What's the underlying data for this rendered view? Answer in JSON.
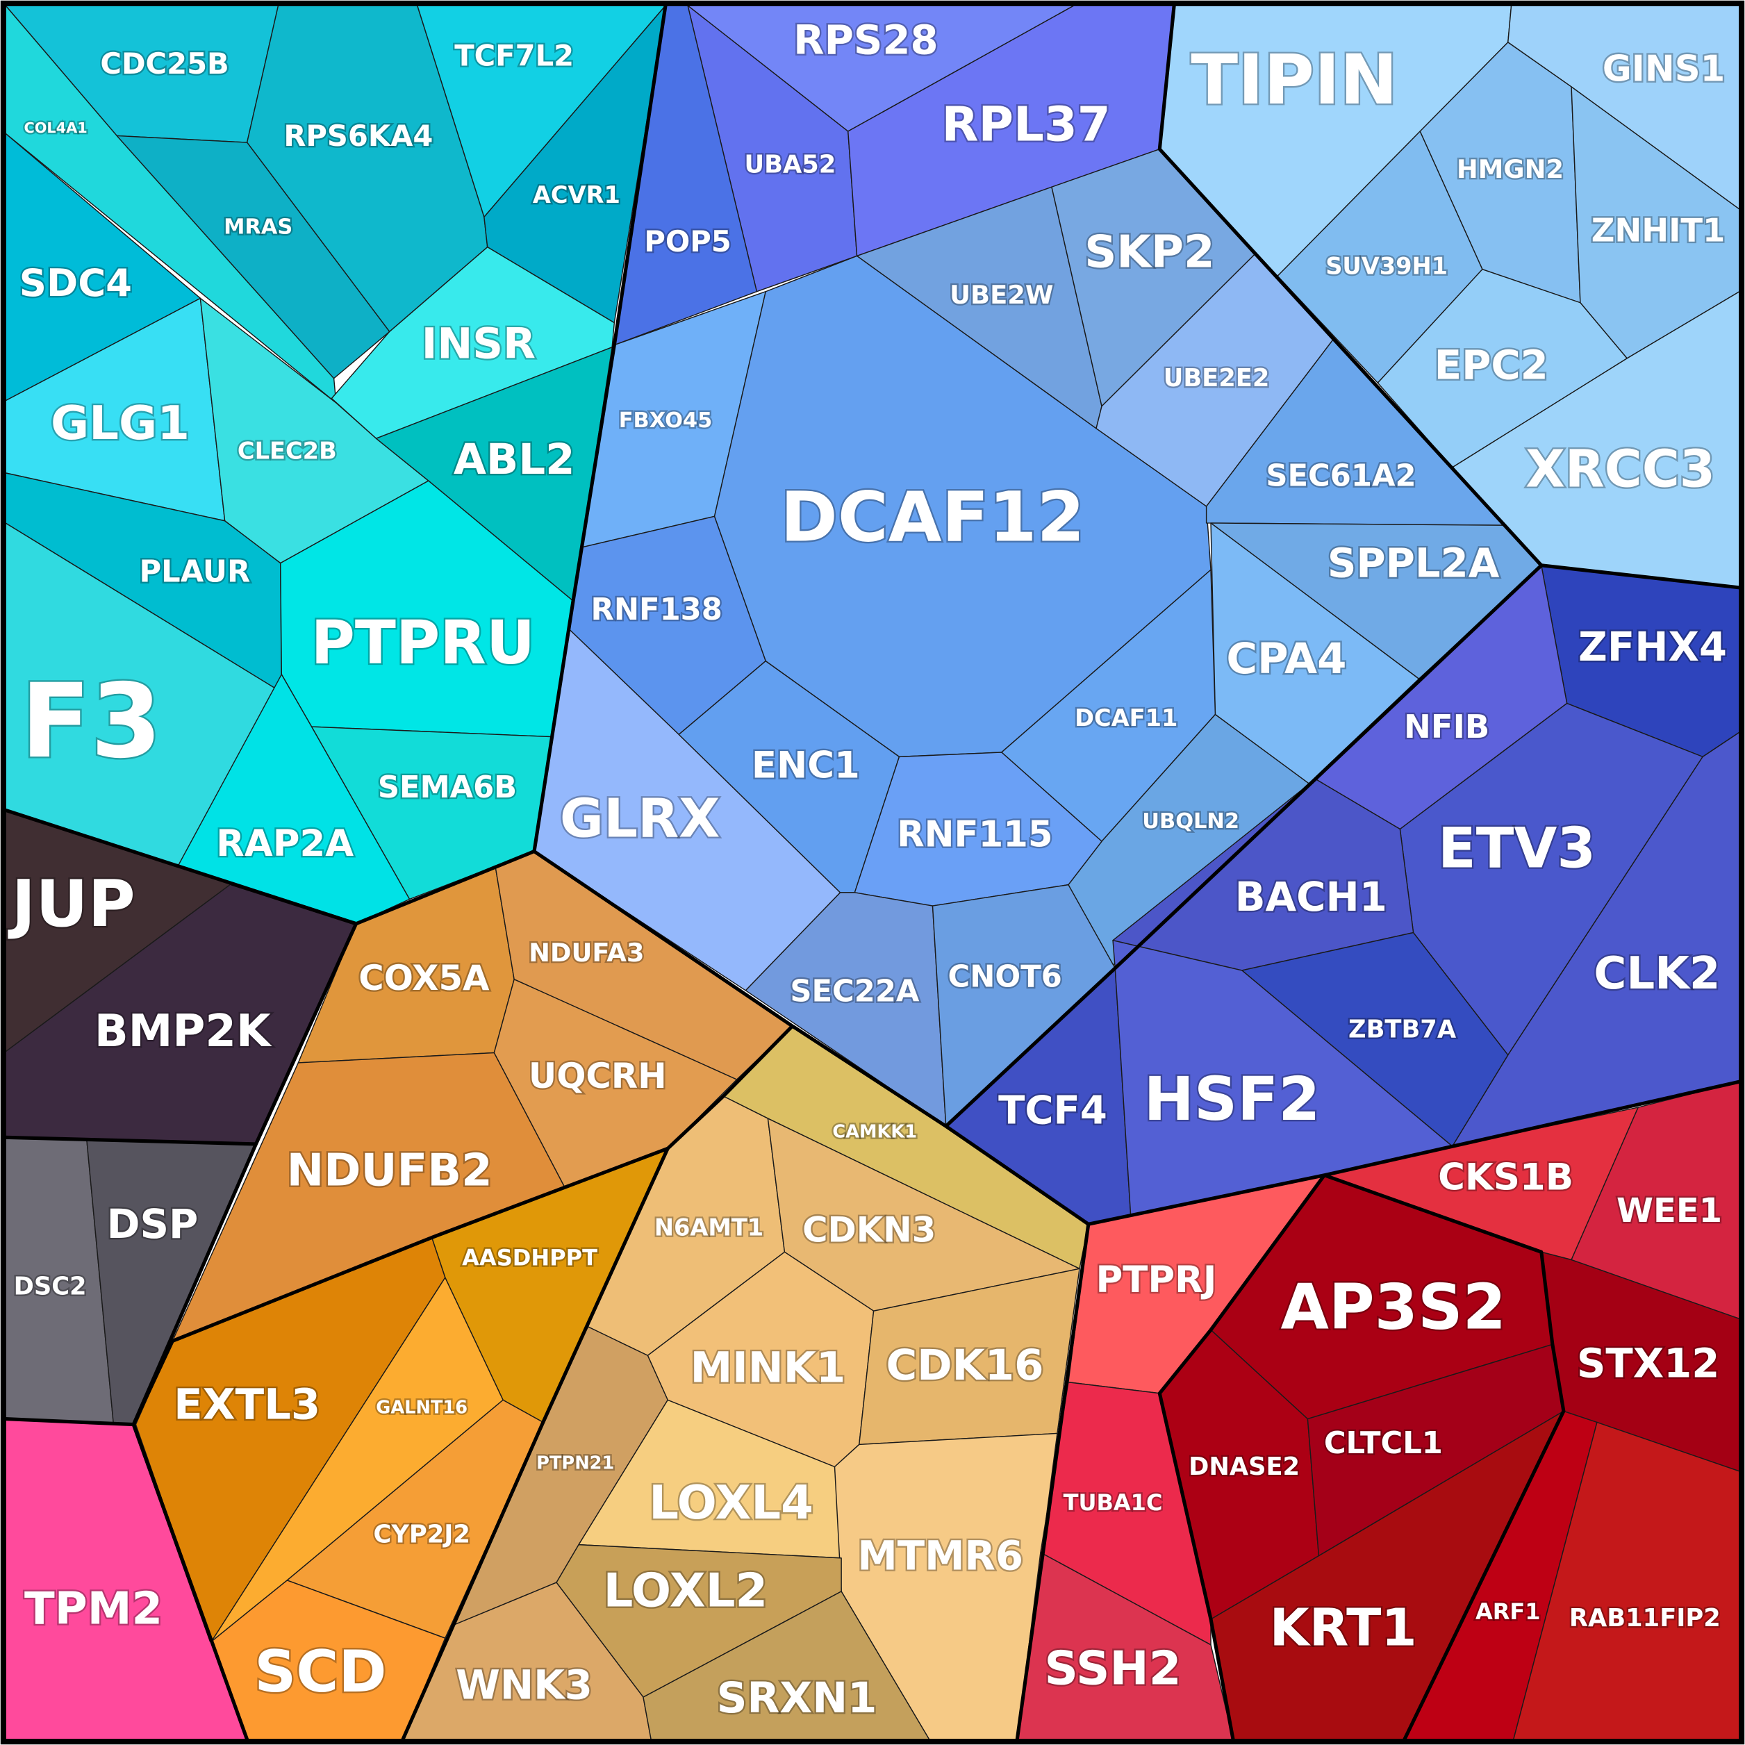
{
  "chart_data": {
    "type": "voronoi-treemap",
    "title": "",
    "groups": [
      {
        "name": "cyan-group",
        "color": "#18c8dc",
        "cells": [
          {
            "label": "CDC25B",
            "color": "#14c2d8"
          },
          {
            "label": "COL4A1",
            "color": "#20d8dc"
          },
          {
            "label": "RPS6KA4",
            "color": "#0fb8cc"
          },
          {
            "label": "TCF7L2",
            "color": "#12d0e4"
          },
          {
            "label": "MRAS",
            "color": "#0eb0c6"
          },
          {
            "label": "ACVR1",
            "color": "#00aac8"
          },
          {
            "label": "SDC4",
            "color": "#00bcd8"
          },
          {
            "label": "INSR",
            "color": "#38eaec"
          },
          {
            "label": "GLG1",
            "color": "#38dff4"
          },
          {
            "label": "CLEC2B",
            "color": "#3ae0e2"
          },
          {
            "label": "ABL2",
            "color": "#00c0c0"
          },
          {
            "label": "PLAUR",
            "color": "#00bdd0"
          },
          {
            "label": "PTPRU",
            "color": "#00e6e6"
          },
          {
            "label": "F3",
            "color": "#30dae0"
          },
          {
            "label": "SEMA6B",
            "color": "#12dcd8"
          },
          {
            "label": "RAP2A",
            "color": "#00e2e6"
          }
        ]
      },
      {
        "name": "blue-group",
        "color": "#6699ee",
        "cells": [
          {
            "label": "RPS28",
            "color": "#7386f7"
          },
          {
            "label": "UBA52",
            "color": "#6272ef"
          },
          {
            "label": "RPL37",
            "color": "#6c76f4"
          },
          {
            "label": "POP5",
            "color": "#4b72e6"
          },
          {
            "label": "UBE2W",
            "color": "#72a2e0"
          },
          {
            "label": "SKP2",
            "color": "#78a8e2"
          },
          {
            "label": "UBE2E2",
            "color": "#8eb8f4"
          },
          {
            "label": "FBXO45",
            "color": "#6fb0f8"
          },
          {
            "label": "DCAF12",
            "color": "#64a0f0"
          },
          {
            "label": "SEC61A2",
            "color": "#6aa6ec"
          },
          {
            "label": "SPPL2A",
            "color": "#70aae6"
          },
          {
            "label": "RNF138",
            "color": "#5c94ee"
          },
          {
            "label": "CPA4",
            "color": "#7cbaf6"
          },
          {
            "label": "DCAF11",
            "color": "#68a6f2"
          },
          {
            "label": "GLRX",
            "color": "#94b8fc"
          },
          {
            "label": "ENC1",
            "color": "#629ff0"
          },
          {
            "label": "UBQLN2",
            "color": "#6aa6e4"
          },
          {
            "label": "RNF115",
            "color": "#6aa0f6"
          },
          {
            "label": "SEC22A",
            "color": "#729ade"
          },
          {
            "label": "CNOT6",
            "color": "#6a9ee2"
          }
        ]
      },
      {
        "name": "light-blue-group",
        "color": "#98ccf6",
        "cells": [
          {
            "label": "TIPIN",
            "color": "#a0d6fc"
          },
          {
            "label": "GINS1",
            "color": "#9ed2fa"
          },
          {
            "label": "HMGN2",
            "color": "#86c0f2"
          },
          {
            "label": "ZNHIT1",
            "color": "#8ac4f2"
          },
          {
            "label": "SUV39H1",
            "color": "#80bcf0"
          },
          {
            "label": "EPC2",
            "color": "#94cef8"
          },
          {
            "label": "XRCC3",
            "color": "#9ed4fa"
          }
        ]
      },
      {
        "name": "indigo-group",
        "color": "#4e5bd0",
        "cells": [
          {
            "label": "ZFHX4",
            "color": "#2e44bc"
          },
          {
            "label": "NFIB",
            "color": "#5e62dc"
          },
          {
            "label": "ETV3",
            "color": "#4a58cc"
          },
          {
            "label": "BACH1",
            "color": "#4c56c8"
          },
          {
            "label": "CLK2",
            "color": "#4c58cc"
          },
          {
            "label": "ZBTB7A",
            "color": "#344cc0"
          },
          {
            "label": "TCF4",
            "color": "#4050c4"
          },
          {
            "label": "HSF2",
            "color": "#5360d4"
          }
        ]
      },
      {
        "name": "dark-group",
        "color": "#3e2e38",
        "cells": [
          {
            "label": "JUP",
            "color": "#402e32"
          },
          {
            "label": "BMP2K",
            "color": "#3c2a40"
          }
        ]
      },
      {
        "name": "gray-group",
        "color": "#62606a",
        "cells": [
          {
            "label": "DSC2",
            "color": "#6e6c76"
          },
          {
            "label": "DSP",
            "color": "#56545e"
          }
        ]
      },
      {
        "name": "pink-group",
        "color": "#ff4a9a",
        "cells": [
          {
            "label": "TPM2",
            "color": "#ff4a9c"
          }
        ]
      },
      {
        "name": "orange-group",
        "color": "#e08f3e",
        "cells": [
          {
            "label": "COX5A",
            "color": "#e0963c"
          },
          {
            "label": "NDUFA3",
            "color": "#e09a50"
          },
          {
            "label": "UQCRH",
            "color": "#e29c50"
          },
          {
            "label": "NDUFB2",
            "color": "#e08e3a"
          },
          {
            "label": "AASDHPPT",
            "color": "#e09808"
          },
          {
            "label": "EXTL3",
            "color": "#de8406"
          },
          {
            "label": "GALNT16",
            "color": "#fcac30"
          },
          {
            "label": "CYP2J2",
            "color": "#f59e36"
          },
          {
            "label": "SCD",
            "color": "#fd9a30"
          }
        ]
      },
      {
        "name": "tan-group",
        "color": "#e8b870",
        "cells": [
          {
            "label": "CAMKK1",
            "color": "#dcc064"
          },
          {
            "label": "N6AMT1",
            "color": "#eebe76"
          },
          {
            "label": "CDKN3",
            "color": "#e8b872"
          },
          {
            "label": "MINK1",
            "color": "#f2c078"
          },
          {
            "label": "CDK16",
            "color": "#e6b66c"
          },
          {
            "label": "PTPN21",
            "color": "#d0a062"
          },
          {
            "label": "LOXL4",
            "color": "#f6ce80"
          },
          {
            "label": "MTMR6",
            "color": "#f6ca86"
          },
          {
            "label": "LOXL2",
            "color": "#c8a058"
          },
          {
            "label": "WNK3",
            "color": "#dca868"
          },
          {
            "label": "SRXN1",
            "color": "#c4a05c"
          }
        ]
      },
      {
        "name": "red-group",
        "color": "#c01020",
        "cells": [
          {
            "label": "CKS1B",
            "color": "#e43040"
          },
          {
            "label": "WEE1",
            "color": "#d42440"
          },
          {
            "label": "PTPRJ",
            "color": "#fe5a5e"
          },
          {
            "label": "AP3S2",
            "color": "#aa0014"
          },
          {
            "label": "STX12",
            "color": "#a40014"
          },
          {
            "label": "DNASE2",
            "color": "#ac0014"
          },
          {
            "label": "CLTCL1",
            "color": "#a40018"
          },
          {
            "label": "TUBA1C",
            "color": "#ec2a4c"
          },
          {
            "label": "SSH2",
            "color": "#dc3450"
          },
          {
            "label": "KRT1",
            "color": "#a80c10"
          },
          {
            "label": "ARF1",
            "color": "#be0014"
          },
          {
            "label": "RAB11FIP2",
            "color": "#c4181a"
          }
        ]
      }
    ]
  }
}
